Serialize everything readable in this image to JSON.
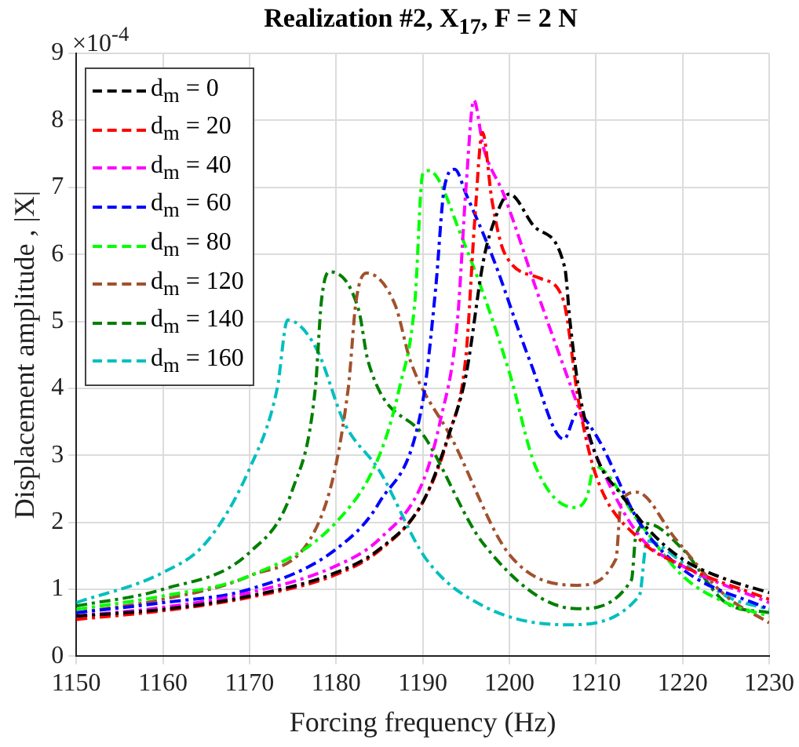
{
  "chart_data": {
    "type": "line",
    "title": "Realization #2, X$_{17}$, F = 2 N",
    "xlabel": "Forcing frequency (Hz)",
    "ylabel": "Displacement amplitude , |X|",
    "annotations": [
      "×10$^{-4}$"
    ],
    "xlim": [
      1150,
      1230
    ],
    "xticks": [
      1150,
      1160,
      1170,
      1180,
      1190,
      1200,
      1210,
      1220,
      1230
    ],
    "ylim": [
      0,
      9
    ],
    "yticks": [
      0,
      1,
      2,
      3,
      4,
      5,
      6,
      7,
      8,
      9
    ],
    "grid": true,
    "legend": "top left",
    "line_style": "dashed",
    "marker": "none",
    "series": [
      {
        "name": "d$_{m}$ = 0",
        "color": "#000000",
        "x": [
          1150,
          1160,
          1170,
          1180,
          1185,
          1190,
          1193,
          1195,
          1197,
          1198,
          1200,
          1203,
          1206.4,
          1207,
          1208,
          1210,
          1213,
          1216,
          1220,
          1225,
          1230
        ],
        "values": [
          0.6,
          0.7,
          0.9,
          1.25,
          1.6,
          2.3,
          3.3,
          4.2,
          5.9,
          6.4,
          6.9,
          6.4,
          5.8,
          5.0,
          4.0,
          3.0,
          2.4,
          1.9,
          1.45,
          1.15,
          0.95
        ]
      },
      {
        "name": "d$_{m}$ = 20",
        "color": "#ff0000",
        "x": [
          1150,
          1160,
          1170,
          1180,
          1185,
          1190,
          1193,
          1195,
          1196,
          1196.9,
          1198,
          1199.4,
          1203.6,
          1206.2,
          1208,
          1210,
          1215,
          1220,
          1230
        ],
        "values": [
          0.55,
          0.68,
          0.88,
          1.22,
          1.58,
          2.3,
          3.3,
          4.5,
          6.5,
          7.82,
          6.8,
          6.03,
          5.64,
          5.33,
          3.8,
          2.7,
          1.75,
          1.35,
          0.85
        ]
      },
      {
        "name": "d$_{m}$ = 40",
        "color": "#ff00ff",
        "x": [
          1150,
          1160,
          1170,
          1180,
          1185,
          1190,
          1192,
          1194,
          1195,
          1195.9,
          1197,
          1199.4,
          1203.5,
          1207.8,
          1210,
          1215,
          1220,
          1230
        ],
        "values": [
          0.6,
          0.73,
          0.95,
          1.35,
          1.75,
          2.6,
          3.5,
          5.0,
          7.0,
          8.3,
          7.6,
          6.88,
          5.33,
          3.78,
          3.0,
          1.8,
          1.35,
          0.8
        ]
      },
      {
        "name": "d$_{m}$ = 60",
        "color": "#0000ff",
        "x": [
          1150,
          1160,
          1170,
          1180,
          1185,
          1190,
          1191.5,
          1192.5,
          1193.7,
          1195,
          1198.1,
          1202.4,
          1206.3,
          1207.8,
          1210,
          1215,
          1220,
          1230
        ],
        "values": [
          0.65,
          0.8,
          1.0,
          1.6,
          2.3,
          3.8,
          5.5,
          7.0,
          7.27,
          6.9,
          5.95,
          4.4,
          3.24,
          3.62,
          3.3,
          2.0,
          1.3,
          0.7
        ]
      },
      {
        "name": "d$_{m}$ = 80",
        "color": "#00ff00",
        "x": [
          1150,
          1160,
          1170,
          1180,
          1185,
          1187.3,
          1189.1,
          1190,
          1190.7,
          1194.5,
          1200,
          1203,
          1207.5,
          1209,
          1209.8,
          1215,
          1220,
          1225,
          1230
        ],
        "values": [
          0.7,
          0.9,
          1.2,
          2.0,
          3.0,
          4.0,
          5.3,
          7.2,
          7.25,
          6.26,
          4.24,
          2.84,
          2.22,
          2.4,
          2.84,
          2.0,
          1.2,
          0.8,
          0.6
        ]
      },
      {
        "name": "d$_{m}$ = 120",
        "color": "#a0522d",
        "x": [
          1150,
          1160,
          1170,
          1178,
          1181.4,
          1182.3,
          1183.5,
          1186.8,
          1188.6,
          1193.4,
          1200,
          1207.8,
          1212.3,
          1212.9,
          1214.7,
          1219.2,
          1225,
          1230
        ],
        "values": [
          0.65,
          0.85,
          1.2,
          2.0,
          4.0,
          5.3,
          5.72,
          5.25,
          4.4,
          3.24,
          1.52,
          1.06,
          1.45,
          2.3,
          2.45,
          1.75,
          0.9,
          0.5
        ]
      },
      {
        "name": "d$_{m}$ = 140",
        "color": "#007f00",
        "x": [
          1150,
          1160,
          1170,
          1175,
          1177.6,
          1178.3,
          1179.2,
          1182.6,
          1183.7,
          1190.4,
          1197,
          1207.8,
          1214.1,
          1214.6,
          1215.9,
          1220,
          1225,
          1230
        ],
        "values": [
          0.75,
          1.0,
          1.55,
          2.5,
          4.0,
          5.3,
          5.74,
          5.17,
          4.4,
          3.24,
          1.68,
          0.71,
          1.14,
          1.79,
          1.98,
          1.6,
          0.8,
          0.65
        ]
      },
      {
        "name": "d$_{m}$ = 160",
        "color": "#00bfbf",
        "x": [
          1150,
          1160,
          1165,
          1170,
          1173.2,
          1174.4,
          1177.7,
          1181,
          1185,
          1190.4,
          1197,
          1206.6,
          1215,
          1215.9,
          1220,
          1225,
          1230
        ],
        "values": [
          0.8,
          1.25,
          1.7,
          2.8,
          4.0,
          5.02,
          4.6,
          3.47,
          2.77,
          1.45,
          0.75,
          0.47,
          0.9,
          1.72,
          1.4,
          0.9,
          0.7
        ]
      }
    ]
  }
}
